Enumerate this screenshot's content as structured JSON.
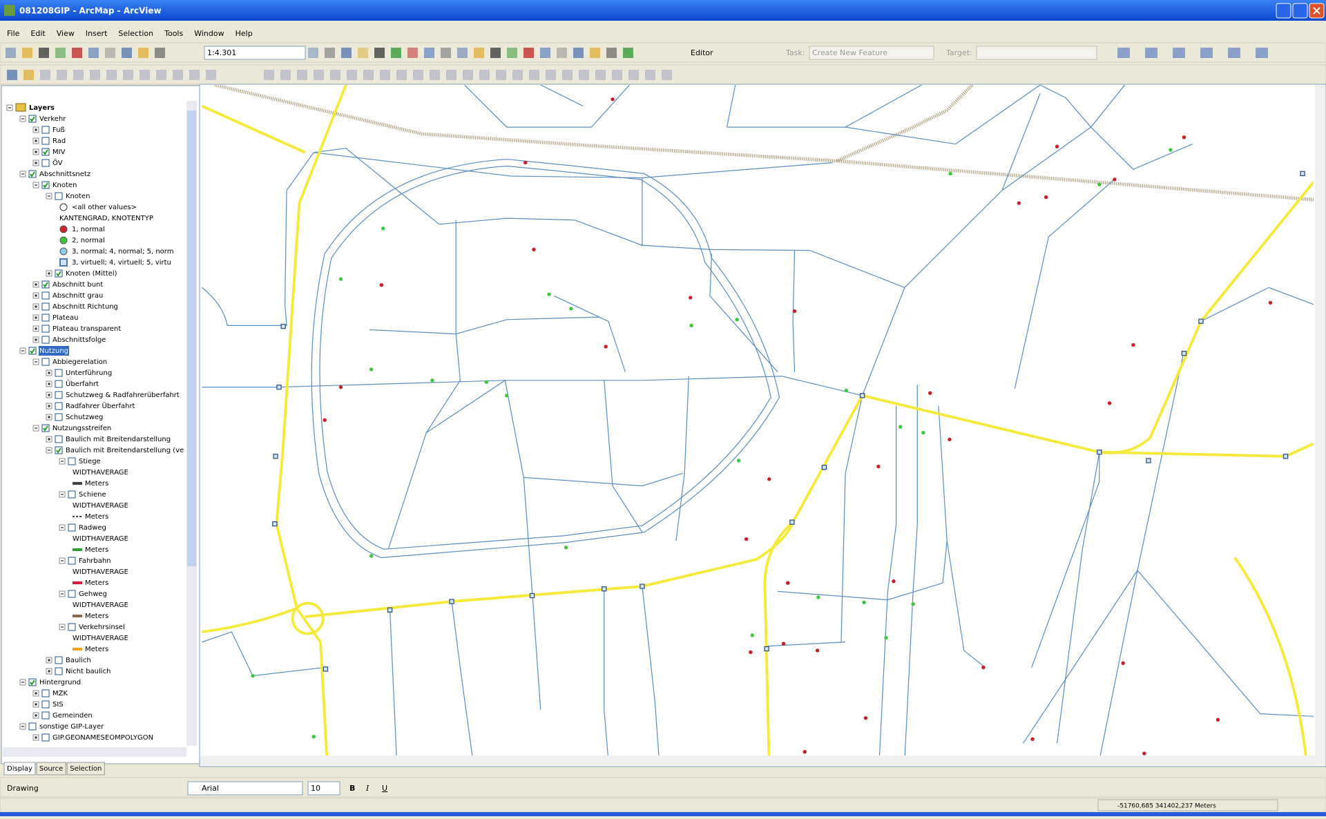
{
  "window": {
    "title": "081208GIP - ArcMap - ArcView"
  },
  "menu": [
    "File",
    "Edit",
    "View",
    "Insert",
    "Selection",
    "Tools",
    "Window",
    "Help"
  ],
  "toolbar": {
    "scale": "1:4.301",
    "editor": "Editor",
    "task_label": "Task:",
    "task": "Create New Feature",
    "target_label": "Target:"
  },
  "toc": {
    "rows": [
      {
        "depth": 0,
        "label": "Layers",
        "checked": null
      },
      {
        "depth": 1,
        "label": "Verkehr",
        "checked": true
      },
      {
        "depth": 2,
        "label": "Fuß",
        "checked": false
      },
      {
        "depth": 2,
        "label": "Rad",
        "checked": false
      },
      {
        "depth": 2,
        "label": "MIV",
        "checked": true
      },
      {
        "depth": 2,
        "label": "ÖV",
        "checked": false
      },
      {
        "depth": 1,
        "label": "Abschnittsnetz",
        "checked": true
      },
      {
        "depth": 2,
        "label": "Knoten",
        "checked": true
      },
      {
        "depth": 3,
        "label": "Knoten",
        "checked": false
      },
      {
        "depth": 4,
        "label": "<all other values>",
        "symbol": {
          "shape": "ring",
          "color": "#ffffff"
        }
      },
      {
        "depth": 4,
        "label": "KANTENGRAD, KNOTENTYP"
      },
      {
        "depth": 4,
        "label": "1, normal",
        "symbol": {
          "shape": "dot",
          "color": "#d0202a"
        }
      },
      {
        "depth": 4,
        "label": "2, normal",
        "symbol": {
          "shape": "dot",
          "color": "#3cc83c"
        }
      },
      {
        "depth": 4,
        "label": "3, normal; 4, normal; 5, norm",
        "symbol": {
          "shape": "dot",
          "color": "#8cc8e8"
        }
      },
      {
        "depth": 4,
        "label": "3, virtuell; 4, virtuell; 5, virtu",
        "symbol": {
          "shape": "square",
          "color": "#4a7ab0"
        }
      },
      {
        "depth": 3,
        "label": "Knoten (Mittel)",
        "checked": true
      },
      {
        "depth": 2,
        "label": "Abschnitt bunt",
        "checked": true
      },
      {
        "depth": 2,
        "label": "Abschnitt grau",
        "checked": false
      },
      {
        "depth": 2,
        "label": "Abschnitt Richtung",
        "checked": false
      },
      {
        "depth": 2,
        "label": "Plateau",
        "checked": false
      },
      {
        "depth": 2,
        "label": "Plateau transparent",
        "checked": false
      },
      {
        "depth": 2,
        "label": "Abschnittsfolge",
        "checked": false
      },
      {
        "depth": 1,
        "label": "Nutzung",
        "checked": true,
        "selected": true
      },
      {
        "depth": 2,
        "label": "Abbiegerelation",
        "checked": false
      },
      {
        "depth": 3,
        "label": "Unterführung",
        "checked": false
      },
      {
        "depth": 3,
        "label": "Überfahrt",
        "checked": false
      },
      {
        "depth": 3,
        "label": "Schutzweg & Radfahrerüberfahrt",
        "checked": false
      },
      {
        "depth": 3,
        "label": "Radfahrer Überfahrt",
        "checked": false
      },
      {
        "depth": 3,
        "label": "Schutzweg",
        "checked": false
      },
      {
        "depth": 2,
        "label": "Nutzungsstreifen",
        "checked": true
      },
      {
        "depth": 3,
        "label": "Baulich mit Breitendarstellung",
        "checked": false
      },
      {
        "depth": 3,
        "label": "Baulich mit Breitendarstellung (ve",
        "checked": true
      },
      {
        "depth": 4,
        "label": "Stiege",
        "checked": false
      },
      {
        "depth": 5,
        "label": "WIDTHAVERAGE"
      },
      {
        "depth": 5,
        "label": "Meters",
        "symbol": {
          "shape": "line",
          "color": "#404040"
        }
      },
      {
        "depth": 4,
        "label": "Schiene",
        "checked": false
      },
      {
        "depth": 5,
        "label": "WIDTHAVERAGE"
      },
      {
        "depth": 5,
        "label": "Meters",
        "symbol": {
          "shape": "dash",
          "color": "#404040"
        }
      },
      {
        "depth": 4,
        "label": "Radweg",
        "checked": false
      },
      {
        "depth": 5,
        "label": "WIDTHAVERAGE"
      },
      {
        "depth": 5,
        "label": "Meters",
        "symbol": {
          "shape": "line",
          "color": "#30a030"
        }
      },
      {
        "depth": 4,
        "label": "Fahrbahn",
        "checked": false
      },
      {
        "depth": 5,
        "label": "WIDTHAVERAGE"
      },
      {
        "depth": 5,
        "label": "Meters",
        "symbol": {
          "shape": "line",
          "color": "#d01c3c"
        }
      },
      {
        "depth": 4,
        "label": "Gehweg",
        "checked": false
      },
      {
        "depth": 5,
        "label": "WIDTHAVERAGE"
      },
      {
        "depth": 5,
        "label": "Meters",
        "symbol": {
          "shape": "line",
          "color": "#8a6a4a"
        }
      },
      {
        "depth": 4,
        "label": "Verkehrsinsel",
        "checked": false
      },
      {
        "depth": 5,
        "label": "WIDTHAVERAGE"
      },
      {
        "depth": 5,
        "label": "Meters",
        "symbol": {
          "shape": "line",
          "color": "#f0a020"
        }
      },
      {
        "depth": 3,
        "label": "Baulich",
        "checked": false
      },
      {
        "depth": 3,
        "label": "Nicht baulich",
        "checked": false
      },
      {
        "depth": 1,
        "label": "Hintergrund",
        "checked": true
      },
      {
        "depth": 2,
        "label": "MZK",
        "checked": false
      },
      {
        "depth": 2,
        "label": "SIS",
        "checked": false
      },
      {
        "depth": 2,
        "label": "Gemeinden",
        "checked": false
      },
      {
        "depth": 1,
        "label": "sonstige GIP-Layer",
        "checked": false
      },
      {
        "depth": 2,
        "label": "GIP.GEONAMESEOMPOLYGON",
        "checked": false
      }
    ]
  },
  "tabs": [
    "Display",
    "Source",
    "Selection"
  ],
  "drawing": {
    "menu": "Drawing",
    "font": "Arial",
    "size": "10"
  },
  "status": {
    "coordinates": "-51760,685  341402,237 Meters"
  }
}
